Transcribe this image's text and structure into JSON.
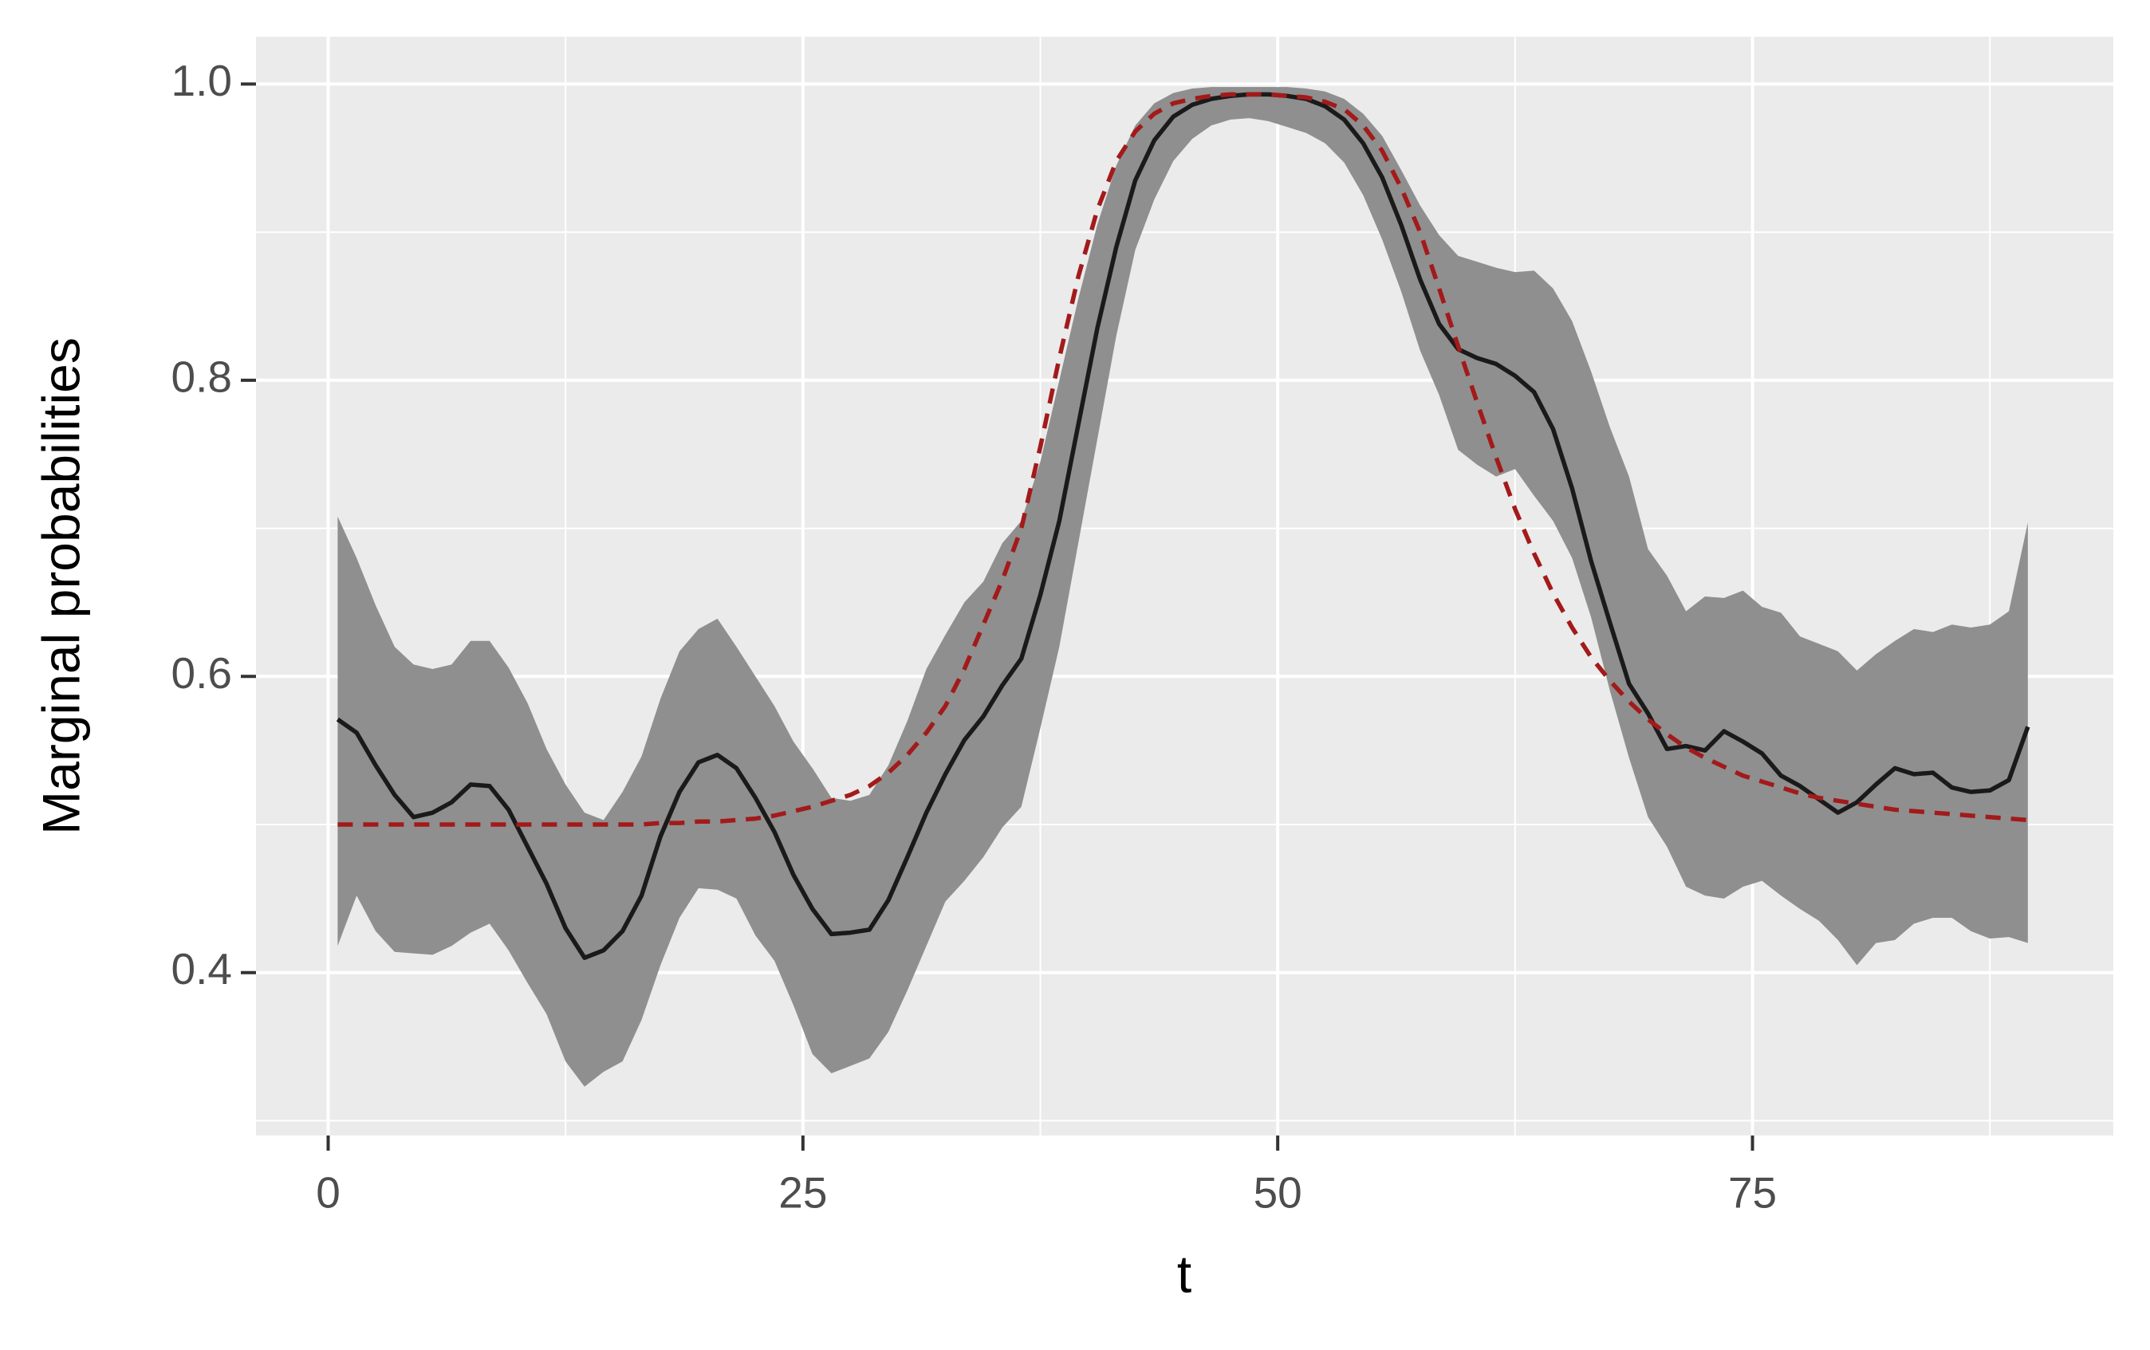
{
  "chart_data": {
    "type": "line",
    "xlabel": "t",
    "ylabel": "Marginal probabilities",
    "x": [
      0.5,
      1.5,
      2.5,
      3.5,
      4.5,
      5.5,
      6.5,
      7.5,
      8.5,
      9.5,
      10.5,
      11.5,
      12.5,
      13.5,
      14.5,
      15.5,
      16.5,
      17.5,
      18.5,
      19.5,
      20.5,
      21.5,
      22.5,
      23.5,
      24.5,
      25.5,
      26.5,
      27.5,
      28.5,
      29.5,
      30.5,
      31.5,
      32.5,
      33.5,
      34.5,
      35.5,
      36.5,
      37.5,
      38.5,
      39.5,
      40.5,
      41.5,
      42.5,
      43.5,
      44.5,
      45.5,
      46.5,
      47.5,
      48.5,
      49.5,
      50.5,
      51.5,
      52.5,
      53.5,
      54.5,
      55.5,
      56.5,
      57.5,
      58.5,
      59.5,
      60.5,
      61.5,
      62.5,
      63.5,
      64.5,
      65.5,
      66.5,
      67.5,
      68.5,
      69.5,
      70.5,
      71.5,
      72.5,
      73.5,
      74.5,
      75.5,
      76.5,
      77.5,
      78.5,
      79.5,
      80.5,
      81.5,
      82.5,
      83.5,
      84.5,
      85.5,
      86.5,
      87.5,
      88.5,
      89.5
    ],
    "ribbon": {
      "color": "#8f8f8f",
      "upper": [
        0.708,
        0.68,
        0.648,
        0.62,
        0.608,
        0.605,
        0.608,
        0.624,
        0.624,
        0.606,
        0.582,
        0.551,
        0.527,
        0.508,
        0.503,
        0.522,
        0.546,
        0.585,
        0.617,
        0.632,
        0.639,
        0.62,
        0.6,
        0.58,
        0.556,
        0.538,
        0.518,
        0.516,
        0.52,
        0.54,
        0.57,
        0.605,
        0.628,
        0.65,
        0.664,
        0.69,
        0.705,
        0.745,
        0.8,
        0.855,
        0.905,
        0.945,
        0.972,
        0.987,
        0.994,
        0.997,
        0.998,
        0.998,
        0.998,
        0.998,
        0.998,
        0.997,
        0.995,
        0.99,
        0.98,
        0.965,
        0.942,
        0.918,
        0.898,
        0.884,
        0.88,
        0.876,
        0.873,
        0.874,
        0.862,
        0.84,
        0.806,
        0.768,
        0.735,
        0.686,
        0.668,
        0.644,
        0.654,
        0.653,
        0.658,
        0.647,
        0.643,
        0.627,
        0.622,
        0.617,
        0.604,
        0.615,
        0.624,
        0.632,
        0.63,
        0.635,
        0.633,
        0.635,
        0.644,
        0.704
      ],
      "lower": [
        0.418,
        0.452,
        0.428,
        0.414,
        0.413,
        0.412,
        0.418,
        0.427,
        0.433,
        0.415,
        0.393,
        0.372,
        0.34,
        0.323,
        0.333,
        0.34,
        0.368,
        0.405,
        0.437,
        0.457,
        0.456,
        0.45,
        0.425,
        0.408,
        0.378,
        0.345,
        0.332,
        0.337,
        0.342,
        0.36,
        0.388,
        0.418,
        0.448,
        0.462,
        0.478,
        0.498,
        0.512,
        0.565,
        0.62,
        0.69,
        0.76,
        0.83,
        0.888,
        0.922,
        0.948,
        0.963,
        0.972,
        0.976,
        0.977,
        0.975,
        0.971,
        0.967,
        0.96,
        0.947,
        0.925,
        0.895,
        0.86,
        0.82,
        0.79,
        0.753,
        0.743,
        0.735,
        0.74,
        0.722,
        0.705,
        0.68,
        0.64,
        0.59,
        0.545,
        0.505,
        0.485,
        0.458,
        0.452,
        0.45,
        0.458,
        0.462,
        0.452,
        0.443,
        0.435,
        0.422,
        0.405,
        0.42,
        0.422,
        0.433,
        0.437,
        0.437,
        0.428,
        0.423,
        0.424,
        0.42
      ]
    },
    "series": [
      {
        "color": "#1a1a1a",
        "style": "solid",
        "values": [
          0.571,
          0.562,
          0.54,
          0.52,
          0.505,
          0.508,
          0.515,
          0.527,
          0.526,
          0.51,
          0.485,
          0.46,
          0.43,
          0.41,
          0.415,
          0.428,
          0.452,
          0.492,
          0.522,
          0.542,
          0.547,
          0.538,
          0.518,
          0.495,
          0.466,
          0.443,
          0.426,
          0.427,
          0.429,
          0.449,
          0.478,
          0.508,
          0.534,
          0.557,
          0.573,
          0.594,
          0.612,
          0.655,
          0.705,
          0.77,
          0.835,
          0.89,
          0.935,
          0.962,
          0.978,
          0.986,
          0.99,
          0.992,
          0.993,
          0.993,
          0.992,
          0.99,
          0.985,
          0.976,
          0.96,
          0.937,
          0.905,
          0.868,
          0.838,
          0.821,
          0.815,
          0.811,
          0.803,
          0.792,
          0.767,
          0.727,
          0.678,
          0.636,
          0.595,
          0.575,
          0.551,
          0.553,
          0.55,
          0.563,
          0.556,
          0.548,
          0.533,
          0.526,
          0.517,
          0.508,
          0.515,
          0.527,
          0.538,
          0.534,
          0.535,
          0.525,
          0.522,
          0.523,
          0.53,
          0.566
        ]
      },
      {
        "color": "#a31a1a",
        "style": "dashed",
        "values": [
          0.5,
          0.5,
          0.5,
          0.5,
          0.5,
          0.5,
          0.5,
          0.5,
          0.5,
          0.5,
          0.5,
          0.5,
          0.5,
          0.5,
          0.5,
          0.5,
          0.5,
          0.501,
          0.501,
          0.502,
          0.502,
          0.503,
          0.504,
          0.506,
          0.509,
          0.512,
          0.516,
          0.52,
          0.526,
          0.535,
          0.547,
          0.562,
          0.58,
          0.605,
          0.635,
          0.665,
          0.7,
          0.755,
          0.815,
          0.87,
          0.915,
          0.948,
          0.968,
          0.98,
          0.987,
          0.99,
          0.992,
          0.993,
          0.993,
          0.993,
          0.992,
          0.991,
          0.988,
          0.983,
          0.972,
          0.955,
          0.93,
          0.9,
          0.862,
          0.823,
          0.785,
          0.748,
          0.713,
          0.683,
          0.656,
          0.633,
          0.613,
          0.597,
          0.583,
          0.571,
          0.561,
          0.552,
          0.545,
          0.539,
          0.533,
          0.529,
          0.525,
          0.521,
          0.518,
          0.516,
          0.514,
          0.512,
          0.51,
          0.509,
          0.508,
          0.507,
          0.506,
          0.505,
          0.504,
          0.503
        ]
      }
    ],
    "xlim": [
      -3.8,
      94
    ],
    "ylim": [
      0.29,
      1.032
    ],
    "xticks": [
      0,
      25,
      50,
      75
    ],
    "yticks": [
      {
        "value": 0.4,
        "label": "0.4"
      },
      {
        "value": 0.6,
        "label": "0.6"
      },
      {
        "value": 0.8,
        "label": "0.8"
      },
      {
        "value": 1.0,
        "label": "1.0"
      }
    ],
    "grid": true,
    "minor_grid": {
      "x": [
        12.5,
        37.5,
        62.5,
        87.5
      ],
      "y": [
        0.3,
        0.5,
        0.7,
        0.9
      ]
    }
  }
}
